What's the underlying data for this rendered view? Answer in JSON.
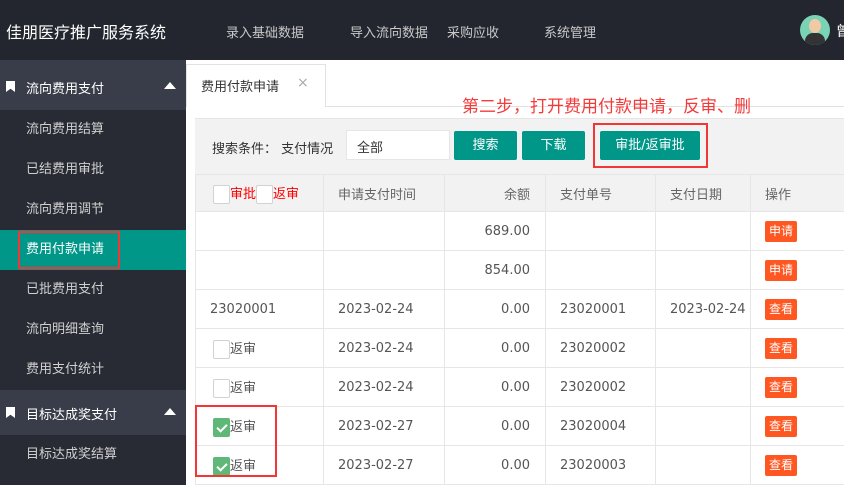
{
  "header": {
    "title": "佳朋医疗推广服务系统",
    "nav": [
      "录入基础数据",
      "导入流向数据",
      "采购应收",
      "系统管理"
    ],
    "user": "曾"
  },
  "sidebar": {
    "sections": [
      {
        "label": "流向费用支付",
        "items": [
          "流向费用结算",
          "已结费用审批",
          "流向费用调节",
          "费用付款申请",
          "已批费用支付",
          "流向明细查询",
          "费用支付统计"
        ]
      },
      {
        "label": "目标达成奖支付",
        "items": [
          "目标达成奖结算"
        ]
      }
    ],
    "active": "费用付款申请"
  },
  "tab": {
    "label": "费用付款申请",
    "close": "×"
  },
  "annotation": "第二步，打开费用付款申请，反审、删",
  "toolbar": {
    "label": "搜索条件： 支付情况",
    "select_value": "全部",
    "search": "搜索",
    "download": "下载",
    "approve": "审批/返审批"
  },
  "table": {
    "headers": {
      "approve": "审批",
      "reverse": "返审",
      "time": "申请支付时间",
      "balance": "余额",
      "no": "支付单号",
      "date": "支付日期",
      "op": "操作"
    },
    "rows": [
      {
        "c1": "",
        "checkbox": false,
        "time": "",
        "balance": "689.00",
        "no": "",
        "date": "",
        "op": "申请"
      },
      {
        "c1": "",
        "checkbox": false,
        "time": "",
        "balance": "854.00",
        "no": "",
        "date": "",
        "op": "申请"
      },
      {
        "c1": "23020001",
        "checkbox": false,
        "time": "2023-02-24",
        "balance": "0.00",
        "no": "23020001",
        "date": "2023-02-24",
        "op": "查看"
      },
      {
        "c1": "返审",
        "checkbox": false,
        "time": "2023-02-24",
        "balance": "0.00",
        "no": "23020002",
        "date": "",
        "op": "查看"
      },
      {
        "c1": "返审",
        "checkbox": false,
        "time": "2023-02-24",
        "balance": "0.00",
        "no": "23020002",
        "date": "",
        "op": "查看"
      },
      {
        "c1": "返审",
        "checkbox": true,
        "time": "2023-02-27",
        "balance": "0.00",
        "no": "23020004",
        "date": "",
        "op": "查看"
      },
      {
        "c1": "返审",
        "checkbox": true,
        "time": "2023-02-27",
        "balance": "0.00",
        "no": "23020003",
        "date": "",
        "op": "查看"
      }
    ]
  },
  "colors": {
    "header_bg": "#23262e",
    "sidebar_bg": "#282b33",
    "active": "#009688",
    "button_orange": "#ff5722",
    "highlight": "#f43535"
  }
}
